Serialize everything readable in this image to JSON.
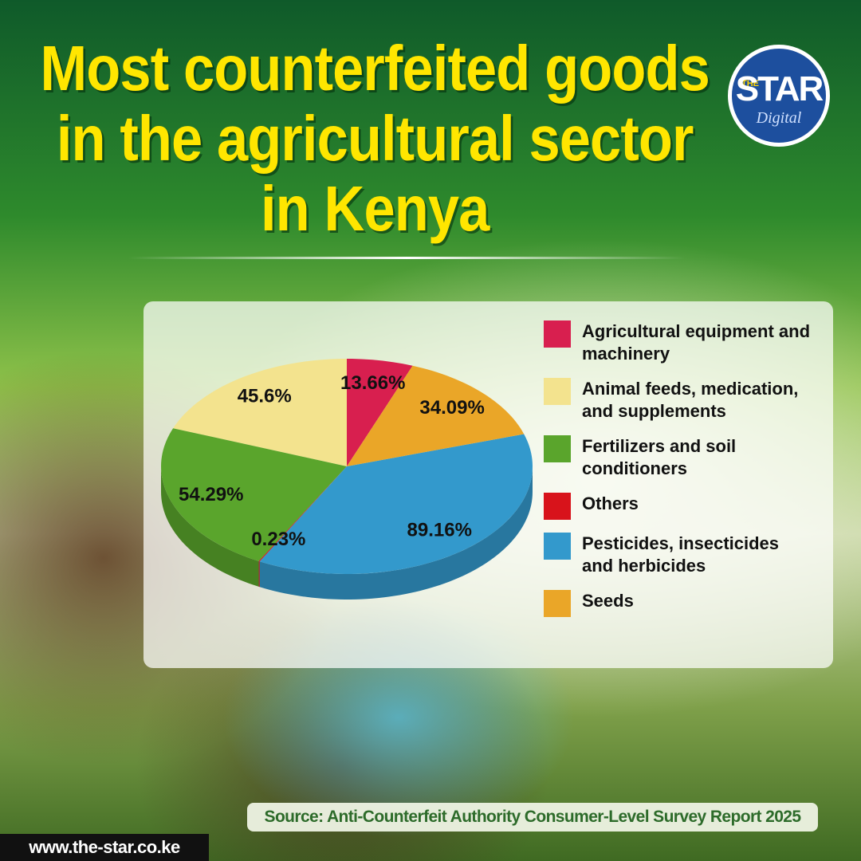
{
  "chart_data": {
    "type": "pie3d",
    "title": "Most counterfeited goods in the agricultural sector in Kenya",
    "categories": [
      "Agricultural equipment and machinery",
      "Animal feeds, medication, and supplements",
      "Fertilizers and soil conditioners",
      "Others",
      "Pesticides, insecticides and herbicides",
      "Seeds"
    ],
    "values": [
      13.66,
      45.6,
      54.29,
      0.23,
      89.16,
      34.09
    ],
    "value_labels": [
      "13.66%",
      "45.6%",
      "54.29%",
      "0.23%",
      "89.16%",
      "34.09%"
    ],
    "colors": [
      "#d81f4f",
      "#f3e38e",
      "#5aa52c",
      "#d8131b",
      "#3399cc",
      "#eaa628"
    ],
    "legend": "right"
  },
  "logo": {
    "small": "THE",
    "name": "STAR",
    "sub": "Digital"
  },
  "source": "Source: Anti-Counterfeit Authority Consumer-Level Survey Report 2025",
  "website": "www.the-star.co.ke"
}
